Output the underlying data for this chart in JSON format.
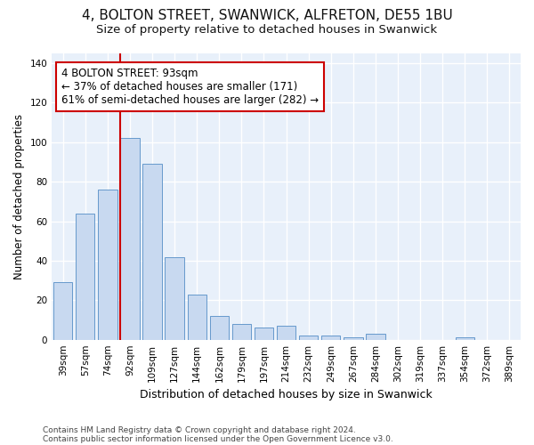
{
  "title1": "4, BOLTON STREET, SWANWICK, ALFRETON, DE55 1BU",
  "title2": "Size of property relative to detached houses in Swanwick",
  "xlabel": "Distribution of detached houses by size in Swanwick",
  "ylabel": "Number of detached properties",
  "footnote1": "Contains HM Land Registry data © Crown copyright and database right 2024.",
  "footnote2": "Contains public sector information licensed under the Open Government Licence v3.0.",
  "categories": [
    "39sqm",
    "57sqm",
    "74sqm",
    "92sqm",
    "109sqm",
    "127sqm",
    "144sqm",
    "162sqm",
    "179sqm",
    "197sqm",
    "214sqm",
    "232sqm",
    "249sqm",
    "267sqm",
    "284sqm",
    "302sqm",
    "319sqm",
    "337sqm",
    "354sqm",
    "372sqm",
    "389sqm"
  ],
  "values": [
    29,
    64,
    76,
    102,
    89,
    42,
    23,
    12,
    8,
    6,
    7,
    2,
    2,
    1,
    3,
    0,
    0,
    0,
    1,
    0,
    0
  ],
  "bar_color": "#c8d9f0",
  "bar_edge_color": "#6699cc",
  "property_line_color": "#cc0000",
  "annotation_line1": "4 BOLTON STREET: 93sqm",
  "annotation_line2": "← 37% of detached houses are smaller (171)",
  "annotation_line3": "61% of semi-detached houses are larger (282) →",
  "annotation_box_color": "#ffffff",
  "annotation_box_edge_color": "#cc0000",
  "ylim": [
    0,
    145
  ],
  "yticks": [
    0,
    20,
    40,
    60,
    80,
    100,
    120,
    140
  ],
  "background_color": "#e8f0fa",
  "grid_color": "#ffffff",
  "fig_bg_color": "#ffffff",
  "title1_fontsize": 11,
  "title2_fontsize": 9.5,
  "ylabel_fontsize": 8.5,
  "xlabel_fontsize": 9,
  "tick_fontsize": 7.5,
  "annotation_fontsize": 8.5,
  "footnote_fontsize": 6.5
}
